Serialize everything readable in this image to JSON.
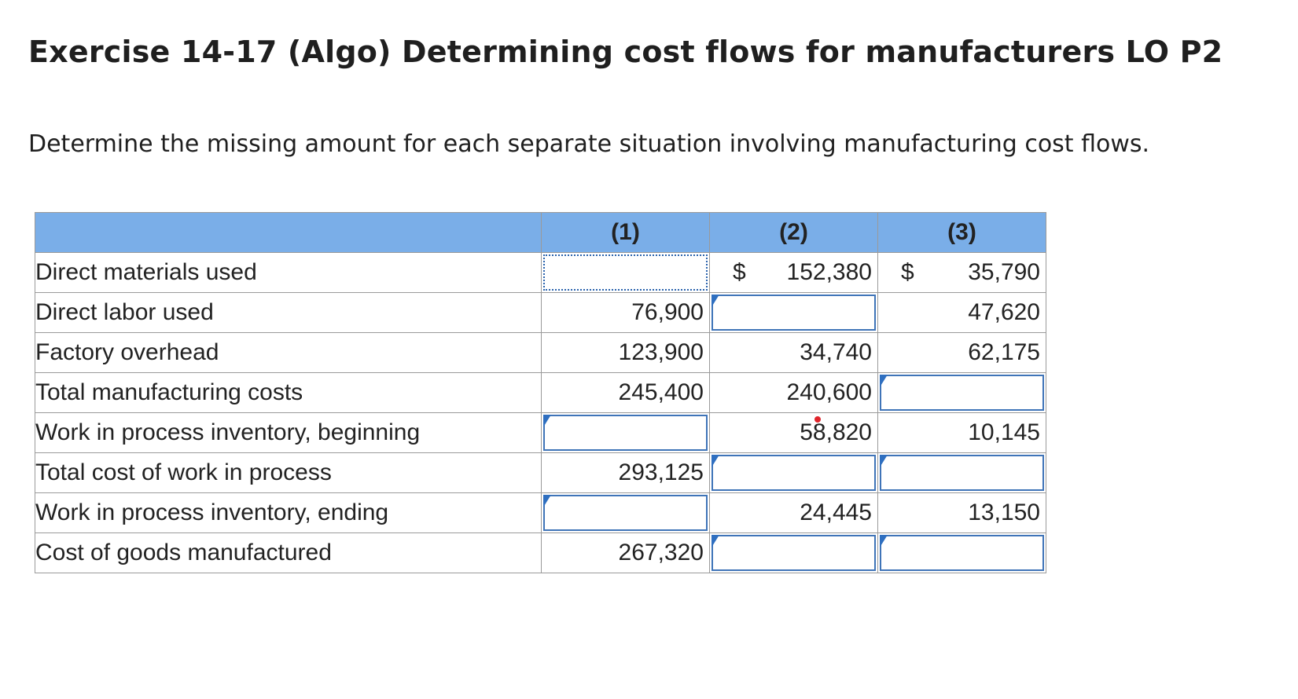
{
  "page": {
    "title": "Exercise 14-17 (Algo) Determining cost flows for manufacturers LO P2",
    "instructions": "Determine the missing amount for each separate situation involving manufacturing cost flows."
  },
  "table": {
    "columns": [
      "",
      "(1)",
      "(2)",
      "(3)"
    ],
    "currency_symbol": "$",
    "rows": [
      {
        "label": "Direct materials used",
        "c1": "",
        "c2": "152,380",
        "c3": "35,790"
      },
      {
        "label": "Direct labor used",
        "c1": "76,900",
        "c2": "",
        "c3": "47,620"
      },
      {
        "label": "Factory overhead",
        "c1": "123,900",
        "c2": "34,740",
        "c3": "62,175"
      },
      {
        "label": "Total manufacturing costs",
        "c1": "245,400",
        "c2": "240,600",
        "c3": ""
      },
      {
        "label": "Work in process inventory, beginning",
        "c1": "",
        "c2": "58,820",
        "c3": "10,145"
      },
      {
        "label": "Total cost of work in process",
        "c1": "293,125",
        "c2": "",
        "c3": ""
      },
      {
        "label": "Work in process inventory, ending",
        "c1": "",
        "c2": "24,445",
        "c3": "13,150"
      },
      {
        "label": "Cost of goods manufactured",
        "c1": "267,320",
        "c2": "",
        "c3": ""
      }
    ]
  },
  "colors": {
    "header_bg": "#7aaee8",
    "input_border": "#3f74b8",
    "marker": "#2f6fc0"
  }
}
